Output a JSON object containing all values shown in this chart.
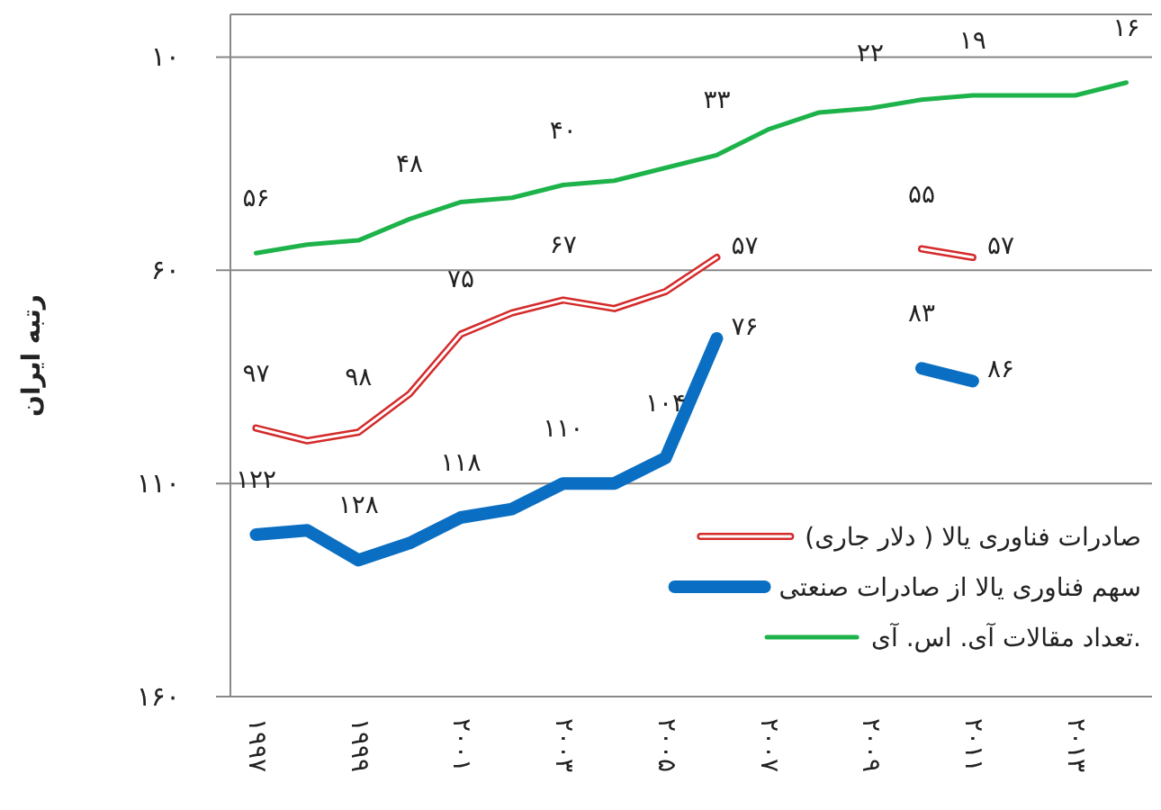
{
  "chart_data": {
    "type": "line",
    "ylabel": "رتبه ایران",
    "categories": [
      "۱۹۹۷",
      null,
      "۱۹۹۹",
      null,
      "۲۰۰۱",
      null,
      "۲۰۰۳",
      null,
      "۲۰۰۵",
      null,
      "۲۰۰۷",
      null,
      "۲۰۰۹",
      null,
      "۲۰۱۱",
      null,
      "۲۰۱۳",
      null
    ],
    "ylim": [
      160,
      0
    ],
    "yticks": [
      {
        "value": 10,
        "label": "۱۰"
      },
      {
        "value": 60,
        "label": "۶۰"
      },
      {
        "value": 110,
        "label": "۱۱۰"
      },
      {
        "value": 160,
        "label": "۱۶۰"
      }
    ],
    "grid": "y",
    "legend": "bottom right",
    "series": [
      {
        "name": "صادرات فناوری یالا ( دلار جاری)",
        "color": "#d42a2a",
        "values": [
          97,
          100,
          98,
          89,
          75,
          70,
          67,
          69,
          65,
          57,
          null,
          null,
          null,
          55,
          57,
          null,
          null,
          null
        ],
        "value_labels": [
          "۹۷",
          null,
          "۹۸",
          null,
          "۷۵",
          null,
          "۶۷",
          null,
          null,
          "۵۷",
          null,
          null,
          null,
          "۵۵",
          "۵۷",
          null,
          null,
          null
        ]
      },
      {
        "name": "سهم فناوری یالا از صادرات صنعتی",
        "color": "#0a6fc2",
        "values": [
          122,
          121,
          128,
          124,
          118,
          116,
          110,
          110,
          104,
          76,
          null,
          null,
          null,
          83,
          86,
          null,
          null,
          null
        ],
        "value_labels": [
          "۱۲۲",
          null,
          "۱۲۸",
          null,
          "۱۱۸",
          null,
          "۱۱۰",
          null,
          "۱۰۴",
          "۷۶",
          null,
          null,
          null,
          "۸۳",
          "۸۶",
          null,
          null,
          null
        ]
      },
      {
        "name": "تعداد مقالات آی. اس. آی.",
        "color": "#1db34a",
        "values": [
          56,
          54,
          53,
          48,
          44,
          43,
          40,
          39,
          36,
          33,
          27,
          23,
          22,
          20,
          19,
          19,
          19,
          16
        ],
        "value_labels": [
          "۵۶",
          null,
          null,
          "۴۸",
          null,
          null,
          "۴۰",
          null,
          null,
          "۳۳",
          null,
          null,
          "۲۲",
          null,
          "۱۹",
          null,
          null,
          "۱۶"
        ]
      }
    ]
  }
}
